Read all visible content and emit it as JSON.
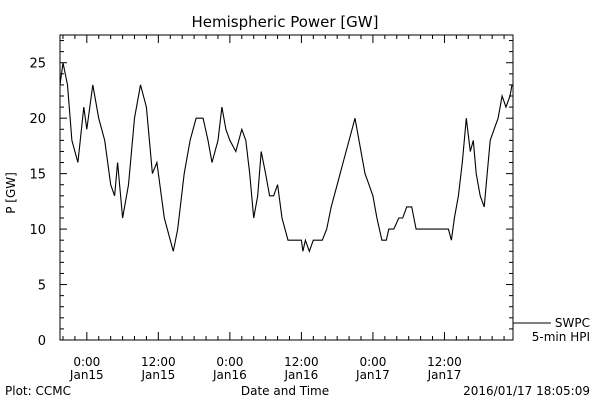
{
  "chart_data": {
    "type": "line",
    "title": "Hemispheric Power [GW]",
    "xlabel": "Date and Time",
    "ylabel": "P [GW]",
    "ylim": [
      0,
      27.5
    ],
    "yticks": [
      0,
      5,
      10,
      15,
      20,
      25
    ],
    "xlim": [
      "2016-01-14 19:30",
      "2016-01-17 23:30"
    ],
    "xticks": [
      {
        "time": "2016-01-15 00:00",
        "label1": "0:00",
        "label2": "Jan15"
      },
      {
        "time": "2016-01-15 12:00",
        "label1": "12:00",
        "label2": "Jan15"
      },
      {
        "time": "2016-01-16 00:00",
        "label1": "0:00",
        "label2": "Jan16"
      },
      {
        "time": "2016-01-16 12:00",
        "label1": "12:00",
        "label2": "Jan16"
      },
      {
        "time": "2016-01-17 00:00",
        "label1": "0:00",
        "label2": "Jan17"
      },
      {
        "time": "2016-01-17 12:00",
        "label1": "12:00",
        "label2": "Jan17"
      }
    ],
    "legend": {
      "position": "right-bottom",
      "label1": "SWPC",
      "label2": "5-min HPI"
    },
    "footer_left": "Plot: CCMC",
    "footer_right": "2016/01/17 18:05:09",
    "series": [
      {
        "name": "SWPC 5-min HPI",
        "color": "#000000",
        "points": [
          [
            "2016-01-14 19:30",
            23
          ],
          [
            "2016-01-14 20:00",
            25
          ],
          [
            "2016-01-14 20:45",
            23
          ],
          [
            "2016-01-14 21:30",
            18
          ],
          [
            "2016-01-14 22:30",
            16
          ],
          [
            "2016-01-14 23:30",
            21
          ],
          [
            "2016-01-15 00:00",
            19
          ],
          [
            "2016-01-15 01:00",
            23
          ],
          [
            "2016-01-15 02:00",
            20
          ],
          [
            "2016-01-15 03:00",
            18
          ],
          [
            "2016-01-15 04:00",
            14
          ],
          [
            "2016-01-15 04:40",
            13
          ],
          [
            "2016-01-15 05:10",
            16
          ],
          [
            "2016-01-15 06:00",
            11
          ],
          [
            "2016-01-15 07:00",
            14
          ],
          [
            "2016-01-15 08:00",
            20
          ],
          [
            "2016-01-15 09:00",
            23
          ],
          [
            "2016-01-15 10:00",
            21
          ],
          [
            "2016-01-15 11:00",
            15
          ],
          [
            "2016-01-15 11:45",
            16
          ],
          [
            "2016-01-15 13:00",
            11
          ],
          [
            "2016-01-15 14:30",
            8
          ],
          [
            "2016-01-15 15:15",
            10
          ],
          [
            "2016-01-15 16:20",
            15
          ],
          [
            "2016-01-15 17:20",
            18
          ],
          [
            "2016-01-15 18:20",
            20
          ],
          [
            "2016-01-15 19:30",
            20
          ],
          [
            "2016-01-15 20:20",
            18
          ],
          [
            "2016-01-15 21:00",
            16
          ],
          [
            "2016-01-15 22:00",
            18
          ],
          [
            "2016-01-15 22:40",
            21
          ],
          [
            "2016-01-15 23:20",
            19
          ],
          [
            "2016-01-16 00:00",
            18
          ],
          [
            "2016-01-16 01:00",
            17
          ],
          [
            "2016-01-16 02:00",
            19
          ],
          [
            "2016-01-16 02:40",
            18
          ],
          [
            "2016-01-16 03:20",
            15
          ],
          [
            "2016-01-16 04:00",
            11
          ],
          [
            "2016-01-16 04:40",
            13
          ],
          [
            "2016-01-16 05:15",
            17
          ],
          [
            "2016-01-16 06:00",
            15
          ],
          [
            "2016-01-16 06:40",
            13
          ],
          [
            "2016-01-16 07:20",
            13
          ],
          [
            "2016-01-16 08:00",
            14
          ],
          [
            "2016-01-16 08:45",
            11
          ],
          [
            "2016-01-16 09:45",
            9
          ],
          [
            "2016-01-16 11:00",
            9
          ],
          [
            "2016-01-16 12:00",
            9
          ],
          [
            "2016-01-16 12:15",
            8
          ],
          [
            "2016-01-16 12:40",
            9
          ],
          [
            "2016-01-16 13:20",
            8
          ],
          [
            "2016-01-16 14:00",
            9
          ],
          [
            "2016-01-16 15:30",
            9
          ],
          [
            "2016-01-16 16:15",
            10
          ],
          [
            "2016-01-16 17:00",
            12
          ],
          [
            "2016-01-16 18:00",
            14
          ],
          [
            "2016-01-16 19:00",
            16
          ],
          [
            "2016-01-16 20:00",
            18
          ],
          [
            "2016-01-16 21:00",
            20
          ],
          [
            "2016-01-16 22:00",
            17
          ],
          [
            "2016-01-16 22:40",
            15
          ],
          [
            "2016-01-16 23:20",
            14
          ],
          [
            "2016-01-17 00:00",
            13
          ],
          [
            "2016-01-17 00:40",
            11
          ],
          [
            "2016-01-17 01:30",
            9
          ],
          [
            "2016-01-17 02:15",
            9
          ],
          [
            "2016-01-17 02:40",
            10
          ],
          [
            "2016-01-17 03:30",
            10
          ],
          [
            "2016-01-17 04:20",
            11
          ],
          [
            "2016-01-17 05:00",
            11
          ],
          [
            "2016-01-17 05:40",
            12
          ],
          [
            "2016-01-17 06:30",
            12
          ],
          [
            "2016-01-17 07:15",
            10
          ],
          [
            "2016-01-17 08:00",
            10
          ],
          [
            "2016-01-17 09:00",
            10
          ],
          [
            "2016-01-17 10:00",
            10
          ],
          [
            "2016-01-17 11:00",
            10
          ],
          [
            "2016-01-17 12:00",
            10
          ],
          [
            "2016-01-17 12:40",
            10
          ],
          [
            "2016-01-17 13:10",
            9
          ],
          [
            "2016-01-17 13:40",
            11
          ],
          [
            "2016-01-17 14:20",
            13
          ],
          [
            "2016-01-17 15:00",
            16
          ],
          [
            "2016-01-17 15:40",
            20
          ],
          [
            "2016-01-17 16:20",
            17
          ],
          [
            "2016-01-17 16:50",
            18
          ],
          [
            "2016-01-17 17:20",
            15
          ],
          [
            "2016-01-17 18:00",
            13
          ],
          [
            "2016-01-17 18:40",
            12
          ],
          [
            "2016-01-17 19:10",
            15
          ],
          [
            "2016-01-17 19:40",
            18
          ],
          [
            "2016-01-17 20:20",
            19
          ],
          [
            "2016-01-17 21:00",
            20
          ],
          [
            "2016-01-17 21:40",
            22
          ],
          [
            "2016-01-17 22:20",
            21
          ],
          [
            "2016-01-17 23:00",
            22
          ],
          [
            "2016-01-17 23:20",
            23
          ]
        ]
      }
    ]
  }
}
